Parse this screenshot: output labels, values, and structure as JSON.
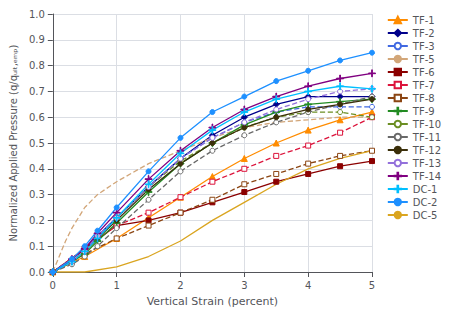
{
  "chart_data": {
    "type": "line",
    "xlabel": "Vertical Strain (percent)",
    "ylabel": "Normalized Applied Pressure (q/qᵤₗₜ,ₑₘₚ)",
    "xlim": [
      0,
      5
    ],
    "ylim": [
      0,
      1
    ],
    "xticks": [
      0,
      1,
      2,
      3,
      4,
      5
    ],
    "yticks": [
      {
        "value": 0,
        "label": "0.0"
      },
      0.1,
      0.2,
      0.3,
      0.4,
      0.5,
      0.6,
      0.7,
      0.8,
      0.9,
      {
        "value": 1,
        "label": "1.0"
      }
    ],
    "grid": true,
    "legend": "right",
    "series": [
      {
        "name": "TF-1",
        "color": "#FF8C00",
        "line_style": "solid",
        "marker": "triangle",
        "x": [
          0,
          0.5,
          1.0,
          1.5,
          2.0,
          2.5,
          3.0,
          3.5,
          4.0,
          4.5,
          5.0
        ],
        "values": [
          0,
          0.06,
          0.13,
          0.21,
          0.29,
          0.37,
          0.44,
          0.5,
          0.55,
          0.59,
          0.62
        ]
      },
      {
        "name": "TF-2",
        "color": "#00008B",
        "line_style": "solid",
        "marker": "diamond",
        "x": [
          0,
          0.3,
          0.5,
          0.7,
          1.0,
          1.5,
          2.0,
          2.5,
          3.0,
          3.5,
          4.0,
          4.5,
          5.0
        ],
        "values": [
          0,
          0.05,
          0.09,
          0.14,
          0.21,
          0.33,
          0.44,
          0.53,
          0.6,
          0.65,
          0.68,
          0.68,
          0.68
        ]
      },
      {
        "name": "TF-3",
        "color": "#4169E1",
        "line_style": "dashed",
        "marker": "circle_open",
        "x": [
          0,
          0.3,
          0.5,
          0.7,
          1.0,
          1.5,
          2.0,
          2.5,
          3.0,
          3.5,
          4.0,
          4.5,
          5.0
        ],
        "values": [
          0,
          0.05,
          0.09,
          0.14,
          0.21,
          0.33,
          0.44,
          0.52,
          0.58,
          0.62,
          0.64,
          0.64,
          0.64
        ]
      },
      {
        "name": "TF-5",
        "color": "#D2A679",
        "line_style": "dashed",
        "marker": "none",
        "x": [
          0,
          0.1,
          0.2,
          0.3,
          0.5,
          0.7,
          1.0,
          1.5,
          2.0,
          2.5,
          3.0,
          3.5,
          4.0,
          4.5,
          5.0
        ],
        "values": [
          0,
          0.06,
          0.12,
          0.17,
          0.25,
          0.3,
          0.35,
          0.42,
          0.47,
          0.52,
          0.56,
          0.58,
          0.59,
          0.6,
          0.6
        ]
      },
      {
        "name": "TF-6",
        "color": "#8B0000",
        "line_style": "solid",
        "marker": "square",
        "x": [
          0,
          0.5,
          1.0,
          1.5,
          2.0,
          2.5,
          3.0,
          3.5,
          4.0,
          4.5,
          5.0
        ],
        "values": [
          0,
          0.09,
          0.18,
          0.2,
          0.23,
          0.27,
          0.31,
          0.35,
          0.38,
          0.41,
          0.43
        ]
      },
      {
        "name": "TF-7",
        "color": "#DC143C",
        "line_style": "dashed",
        "marker": "square_open",
        "x": [
          0,
          0.5,
          1.0,
          1.5,
          2.0,
          2.5,
          3.0,
          3.5,
          4.0,
          4.5,
          5.0
        ],
        "values": [
          0,
          0.09,
          0.18,
          0.23,
          0.29,
          0.35,
          0.4,
          0.45,
          0.49,
          0.54,
          0.6
        ]
      },
      {
        "name": "TF-8",
        "color": "#8B4513",
        "line_style": "dashed",
        "marker": "square_open",
        "x": [
          0,
          0.5,
          1.0,
          1.5,
          2.0,
          2.5,
          3.0,
          3.5,
          4.0,
          4.5,
          5.0
        ],
        "values": [
          0,
          0.07,
          0.13,
          0.18,
          0.23,
          0.28,
          0.34,
          0.38,
          0.42,
          0.45,
          0.47
        ]
      },
      {
        "name": "TF-9",
        "color": "#228B22",
        "line_style": "solid",
        "marker": "plus",
        "x": [
          0,
          0.3,
          0.5,
          0.7,
          1.0,
          1.5,
          2.0,
          2.5,
          3.0,
          3.5,
          4.0,
          4.5,
          5.0
        ],
        "values": [
          0,
          0.04,
          0.07,
          0.12,
          0.19,
          0.31,
          0.42,
          0.5,
          0.57,
          0.62,
          0.65,
          0.66,
          0.67
        ]
      },
      {
        "name": "TF-10",
        "color": "#6B8E23",
        "line_style": "dashed",
        "marker": "circle_open",
        "x": [
          0,
          0.3,
          0.5,
          0.7,
          1.0,
          1.5,
          2.0,
          2.5,
          3.0,
          3.5,
          4.0,
          4.5,
          5.0
        ],
        "values": [
          0,
          0.04,
          0.08,
          0.13,
          0.21,
          0.33,
          0.43,
          0.5,
          0.56,
          0.6,
          0.62,
          0.62,
          0.6
        ]
      },
      {
        "name": "TF-11",
        "color": "#696969",
        "line_style": "dashed",
        "marker": "circle_open",
        "x": [
          0,
          0.3,
          0.5,
          0.7,
          1.0,
          1.5,
          2.0,
          2.5,
          3.0,
          3.5,
          4.0,
          4.5,
          5.0
        ],
        "values": [
          0,
          0.03,
          0.06,
          0.1,
          0.17,
          0.28,
          0.39,
          0.47,
          0.53,
          0.58,
          0.62,
          0.65,
          0.68
        ]
      },
      {
        "name": "TF-12",
        "color": "#3B2F0A",
        "line_style": "solid",
        "marker": "circle",
        "x": [
          0,
          0.3,
          0.5,
          0.7,
          1.0,
          1.5,
          2.0,
          2.5,
          3.0,
          3.5,
          4.0,
          4.5,
          5.0
        ],
        "values": [
          0,
          0.04,
          0.08,
          0.13,
          0.2,
          0.32,
          0.42,
          0.5,
          0.56,
          0.6,
          0.63,
          0.65,
          0.67
        ]
      },
      {
        "name": "TF-13",
        "color": "#9370DB",
        "line_style": "dashed",
        "marker": "circle_open",
        "x": [
          0,
          0.3,
          0.5,
          0.7,
          1.0,
          1.5,
          2.0,
          2.5,
          3.0,
          3.5,
          4.0,
          4.5,
          5.0
        ],
        "values": [
          0,
          0.04,
          0.08,
          0.14,
          0.21,
          0.33,
          0.44,
          0.52,
          0.58,
          0.63,
          0.67,
          0.7,
          0.71
        ]
      },
      {
        "name": "TF-14",
        "color": "#800080",
        "line_style": "solid",
        "marker": "plus",
        "x": [
          0,
          0.3,
          0.5,
          0.7,
          1.0,
          1.5,
          2.0,
          2.5,
          3.0,
          3.5,
          4.0,
          4.5,
          5.0
        ],
        "values": [
          0,
          0.05,
          0.09,
          0.15,
          0.23,
          0.36,
          0.47,
          0.56,
          0.63,
          0.68,
          0.72,
          0.75,
          0.77
        ]
      },
      {
        "name": "DC-1",
        "color": "#00BFFF",
        "line_style": "solid",
        "marker": "plus",
        "x": [
          0,
          0.3,
          0.5,
          0.7,
          1.0,
          1.5,
          2.0,
          2.5,
          3.0,
          3.5,
          4.0,
          4.5,
          5.0
        ],
        "values": [
          0,
          0.04,
          0.08,
          0.13,
          0.21,
          0.34,
          0.46,
          0.55,
          0.62,
          0.67,
          0.7,
          0.72,
          0.71
        ]
      },
      {
        "name": "DC-2",
        "color": "#1E90FF",
        "line_style": "solid",
        "marker": "circle",
        "x": [
          0,
          0.3,
          0.5,
          0.7,
          1.0,
          1.5,
          2.0,
          2.5,
          3.0,
          3.5,
          4.0,
          4.5,
          5.0
        ],
        "values": [
          0,
          0.05,
          0.1,
          0.16,
          0.25,
          0.39,
          0.52,
          0.62,
          0.68,
          0.74,
          0.78,
          0.82,
          0.85
        ]
      },
      {
        "name": "DC-5",
        "color": "#DAA520",
        "line_style": "solid",
        "marker": "none",
        "x": [
          0,
          0.5,
          1.0,
          1.5,
          2.0,
          2.5,
          3.0,
          3.5,
          4.0,
          4.5,
          5.0
        ],
        "values": [
          0,
          0.0,
          0.02,
          0.06,
          0.12,
          0.2,
          0.27,
          0.34,
          0.4,
          0.44,
          0.47
        ]
      }
    ]
  }
}
